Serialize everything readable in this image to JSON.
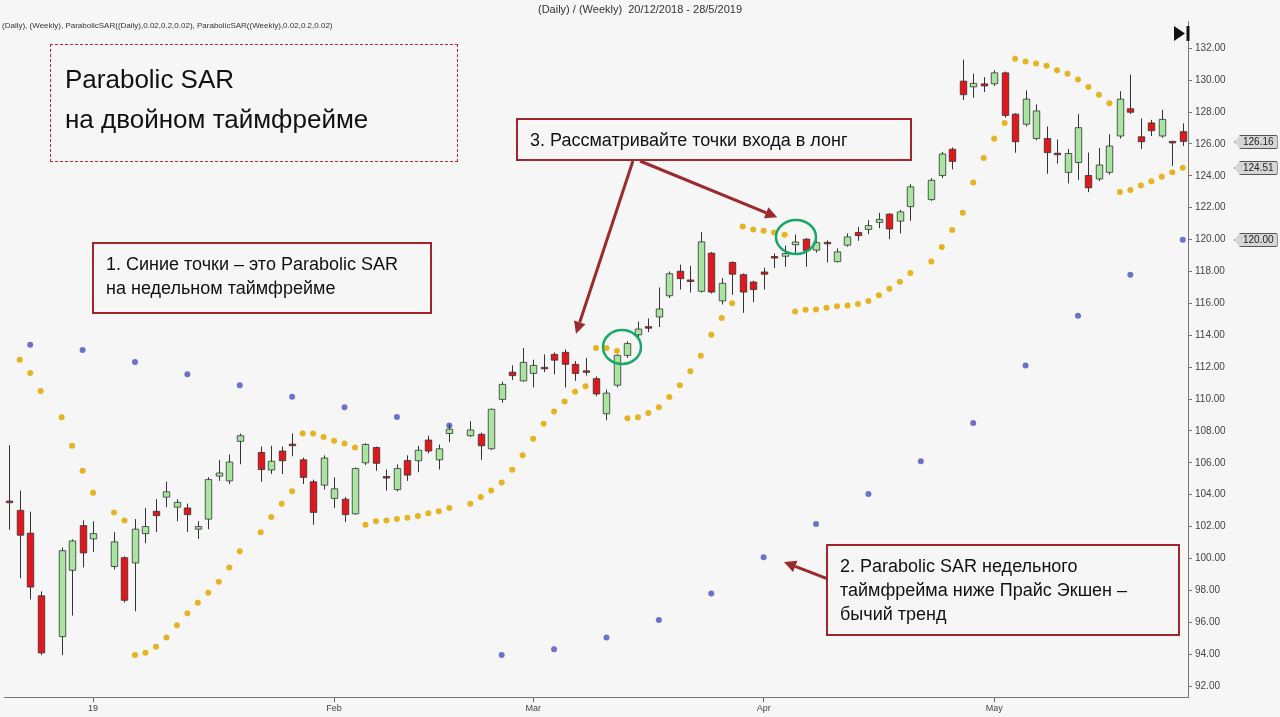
{
  "chart_data": {
    "type": "candlestick",
    "title": "(Daily) / (Weekly)  20/12/2018 - 28/5/2019",
    "subtitle": "(Daily), (Weekly), ParabolicSAR((Daily),0.02,0.2,0.02), ParabolicSAR((Weekly),0.02,0.2,0.02)",
    "categories": [
      null,
      null,
      null,
      null,
      null,
      null,
      null,
      null,
      "19",
      null,
      null,
      null,
      null,
      null,
      null,
      null,
      null,
      null,
      null,
      null,
      null,
      null,
      null,
      null,
      null,
      null,
      null,
      null,
      null,
      null,
      null,
      "Feb",
      null,
      null,
      null,
      null,
      null,
      null,
      null,
      null,
      null,
      null,
      null,
      null,
      null,
      null,
      null,
      null,
      null,
      null,
      "Mar",
      null,
      null,
      null,
      null,
      null,
      null,
      null,
      null,
      null,
      null,
      null,
      null,
      null,
      null,
      null,
      null,
      null,
      null,
      null,
      null,
      null,
      "Apr",
      null,
      null,
      null,
      null,
      null,
      null,
      null,
      null,
      null,
      null,
      null,
      null,
      null,
      null,
      null,
      null,
      null,
      null,
      null,
      null,
      null,
      "May",
      null,
      null,
      null,
      null,
      null,
      null,
      null,
      null,
      null,
      null,
      null,
      null,
      null,
      null,
      null,
      null,
      null,
      null
    ],
    "ohlc": [
      [
        103.6,
        107.1,
        101.8,
        103.5
      ],
      [
        103.02,
        104.26,
        98.76,
        101.46
      ],
      [
        101.59,
        102.94,
        97.44,
        98.21
      ],
      [
        97.66,
        97.94,
        93.94,
        94.08
      ],
      null,
      [
        95.1,
        100.69,
        93.94,
        100.49
      ],
      [
        99.26,
        101.2,
        96.42,
        101.1
      ],
      [
        102.06,
        102.39,
        99.44,
        100.35
      ],
      [
        101.23,
        102.34,
        100.41,
        101.56
      ],
      null,
      [
        99.5,
        101.65,
        99.31,
        101.04
      ],
      [
        100.05,
        100.14,
        97.24,
        97.38
      ],
      [
        99.72,
        102.47,
        96.69,
        101.84
      ],
      [
        101.56,
        103.17,
        100.96,
        102.0
      ],
      [
        102.96,
        103.72,
        101.65,
        102.69
      ],
      [
        103.85,
        104.81,
        103.22,
        104.18
      ],
      [
        103.22,
        103.72,
        102.34,
        103.52
      ],
      [
        103.17,
        103.44,
        101.65,
        102.75
      ],
      [
        101.84,
        102.34,
        101.23,
        102.0
      ],
      [
        102.47,
        105.1,
        101.84,
        104.95
      ],
      [
        105.17,
        106.19,
        104.87,
        105.36
      ],
      [
        104.87,
        106.52,
        104.67,
        106.05
      ],
      [
        107.35,
        107.84,
        105.91,
        107.7
      ],
      null,
      [
        106.65,
        107.02,
        104.81,
        105.58
      ],
      [
        105.55,
        107.07,
        105.3,
        106.1
      ],
      [
        106.74,
        107.02,
        105.3,
        106.13
      ],
      [
        107.17,
        107.84,
        106.41,
        107.15
      ],
      [
        106.19,
        106.33,
        104.67,
        105.09
      ],
      [
        104.81,
        104.95,
        102.12,
        102.89
      ],
      [
        104.6,
        106.47,
        104.32,
        106.3
      ],
      [
        103.77,
        105.09,
        103.17,
        104.37
      ],
      [
        103.72,
        103.85,
        102.28,
        102.75
      ],
      [
        102.8,
        105.7,
        102.75,
        105.64
      ],
      [
        106.0,
        107.23,
        105.86,
        107.15
      ],
      [
        106.96,
        107.02,
        105.5,
        105.97
      ],
      [
        105.14,
        105.58,
        104.26,
        105.12
      ],
      [
        104.32,
        105.91,
        104.21,
        105.64
      ],
      [
        106.14,
        106.47,
        104.87,
        105.23
      ],
      [
        106.13,
        107.07,
        105.41,
        106.79
      ],
      [
        107.43,
        107.7,
        106.6,
        106.74
      ],
      [
        106.19,
        107.15,
        105.58,
        106.88
      ],
      [
        107.84,
        108.39,
        107.29,
        108.11
      ],
      null,
      [
        107.7,
        108.61,
        107.62,
        108.06
      ],
      [
        107.79,
        107.9,
        106.19,
        107.07
      ],
      [
        106.88,
        109.4,
        106.8,
        109.36
      ],
      [
        109.98,
        111.09,
        109.77,
        110.92
      ],
      [
        111.69,
        112.11,
        111.2,
        111.47
      ],
      [
        111.14,
        113.2,
        111.09,
        112.3
      ],
      [
        111.61,
        112.47,
        110.73,
        112.11
      ],
      [
        111.99,
        112.8,
        111.69,
        111.97
      ],
      [
        112.8,
        112.93,
        111.55,
        112.44
      ],
      [
        112.93,
        113.12,
        110.73,
        112.18
      ],
      [
        112.18,
        112.38,
        111.14,
        111.61
      ],
      [
        111.77,
        112.58,
        111.47,
        111.73
      ],
      [
        111.28,
        111.42,
        110.18,
        110.32
      ],
      [
        109.08,
        110.59,
        108.67,
        110.37
      ],
      [
        110.87,
        112.8,
        110.73,
        112.74
      ],
      [
        112.74,
        113.62,
        112.58,
        113.48
      ],
      [
        114.03,
        114.85,
        113.76,
        114.39
      ],
      [
        114.54,
        115.05,
        114.2,
        114.52
      ],
      [
        115.15,
        117.0,
        114.52,
        115.65
      ],
      [
        116.48,
        118.0,
        116.34,
        117.86
      ],
      [
        118.02,
        118.43,
        116.87,
        117.55
      ],
      [
        117.47,
        118.35,
        116.68,
        117.45
      ],
      [
        116.76,
        120.47,
        116.68,
        119.86
      ],
      [
        119.15,
        119.23,
        116.62,
        116.71
      ],
      [
        116.16,
        117.59,
        115.93,
        117.26
      ],
      [
        118.57,
        118.63,
        116.54,
        117.83
      ],
      [
        117.8,
        117.88,
        115.41,
        116.71
      ],
      [
        117.34,
        117.42,
        116.07,
        116.87
      ],
      [
        117.97,
        118.24,
        116.87,
        117.83
      ],
      [
        118.94,
        119.13,
        118.22,
        118.92
      ],
      [
        118.96,
        119.62,
        118.3,
        119.13
      ],
      [
        119.68,
        120.32,
        119.13,
        119.85
      ],
      [
        120.03,
        120.09,
        118.3,
        119.32
      ],
      [
        119.34,
        119.95,
        119.18,
        119.81
      ],
      [
        119.83,
        119.95,
        118.57,
        119.81
      ],
      [
        118.62,
        119.45,
        118.57,
        119.23
      ],
      [
        119.65,
        120.39,
        119.56,
        120.17
      ],
      [
        120.45,
        120.8,
        119.92,
        120.25
      ],
      [
        120.64,
        121.22,
        120.34,
        120.88
      ],
      [
        121.08,
        121.68,
        120.72,
        121.27
      ],
      [
        121.6,
        121.66,
        120.03,
        120.67
      ],
      [
        121.16,
        121.87,
        120.39,
        121.74
      ],
      [
        122.07,
        123.48,
        121.18,
        123.31
      ],
      null,
      [
        122.51,
        123.86,
        122.43,
        123.72
      ],
      [
        124.02,
        125.5,
        123.86,
        125.37
      ],
      [
        125.67,
        125.78,
        124.41,
        124.91
      ],
      [
        129.94,
        131.29,
        128.75,
        129.09
      ],
      [
        129.58,
        130.41,
        128.89,
        129.8
      ],
      [
        129.77,
        130.19,
        129.25,
        129.64
      ],
      [
        129.77,
        130.62,
        129.64,
        130.46
      ],
      [
        130.46,
        130.54,
        127.65,
        127.79
      ],
      [
        127.87,
        127.92,
        125.45,
        126.14
      ],
      [
        127.24,
        129.36,
        127.1,
        128.81
      ],
      [
        126.34,
        128.48,
        126.23,
        128.07
      ],
      [
        126.34,
        127.1,
        124.13,
        125.46
      ],
      [
        125.42,
        126.28,
        124.76,
        125.4
      ],
      [
        124.22,
        125.68,
        123.53,
        125.4
      ],
      [
        124.84,
        127.87,
        123.75,
        127.02
      ],
      [
        124.02,
        125.46,
        122.98,
        123.25
      ],
      [
        123.81,
        125.74,
        123.67,
        124.68
      ],
      [
        124.22,
        126.61,
        124.08,
        125.87
      ],
      [
        126.5,
        129.31,
        126.34,
        128.81
      ],
      [
        128.21,
        130.35,
        127.87,
        127.99
      ],
      [
        126.45,
        127.6,
        125.68,
        126.14
      ],
      [
        127.32,
        127.51,
        126.5,
        126.83
      ],
      [
        126.5,
        128.14,
        126.39,
        127.54
      ],
      [
        126.16,
        126.2,
        124.62,
        126.14
      ],
      [
        126.77,
        127.29,
        125.87,
        126.16
      ]
    ],
    "colors": [
      "#e3161b",
      "#e3161b",
      "#e3161b",
      "#e3161b",
      null,
      "#a8e6a0",
      "#a8e6a0",
      "#e3161b",
      "#a8e6a0",
      null,
      "#a8e6a0",
      "#e3161b",
      "#a8e6a0",
      "#a8e6a0",
      "#e3161b",
      "#a8e6a0",
      "#a8e6a0",
      "#e3161b",
      "#a8e6a0",
      "#a8e6a0",
      "#a8e6a0",
      "#a8e6a0",
      "#a8e6a0",
      null,
      "#e3161b",
      "#a8e6a0",
      "#e3161b",
      "#e3161b",
      "#e3161b",
      "#e3161b",
      "#a8e6a0",
      "#a8e6a0",
      "#e3161b",
      "#a8e6a0",
      "#a8e6a0",
      "#e3161b",
      "#e3161b",
      "#a8e6a0",
      "#e3161b",
      "#a8e6a0",
      "#e3161b",
      "#a8e6a0",
      "#a8e6a0",
      null,
      "#a8e6a0",
      "#e3161b",
      "#a8e6a0",
      "#a8e6a0",
      "#e3161b",
      "#a8e6a0",
      "#a8e6a0",
      "#e3161b",
      "#e3161b",
      "#e3161b",
      "#e3161b",
      "#e3161b",
      "#e3161b",
      "#a8e6a0",
      "#a8e6a0",
      "#a8e6a0",
      "#a8e6a0",
      "#e3161b",
      "#a8e6a0",
      "#a8e6a0",
      "#e3161b",
      "#e3161b",
      "#a8e6a0",
      "#e3161b",
      "#a8e6a0",
      "#e3161b",
      "#e3161b",
      "#e3161b",
      "#e3161b",
      "#e3161b",
      "#a8e6a0",
      "#a8e6a0",
      "#e3161b",
      "#a8e6a0",
      "#e3161b",
      "#a8e6a0",
      "#a8e6a0",
      "#e3161b",
      "#a8e6a0",
      "#a8e6a0",
      "#e3161b",
      "#a8e6a0",
      "#a8e6a0",
      null,
      "#a8e6a0",
      "#a8e6a0",
      "#e3161b",
      "#e3161b",
      "#a8e6a0",
      "#e3161b",
      "#a8e6a0",
      "#e3161b",
      "#e3161b",
      "#a8e6a0",
      "#a8e6a0",
      "#e3161b",
      "#e3161b",
      "#a8e6a0",
      "#a8e6a0",
      "#e3161b",
      "#a8e6a0",
      "#a8e6a0",
      "#a8e6a0",
      "#e3161b",
      "#e3161b",
      "#e3161b",
      "#a8e6a0",
      "#e3161b",
      "#e3161b"
    ],
    "series": [
      {
        "type": "scatter",
        "color": "#e6b422",
        "values": [
          null,
          112.47,
          111.64,
          110.51,
          null,
          108.86,
          107.07,
          105.5,
          104.13,
          null,
          102.89,
          102.39,
          93.95,
          94.09,
          94.47,
          95.05,
          95.82,
          96.56,
          97.22,
          97.85,
          98.54,
          99.44,
          100.46,
          null,
          101.65,
          102.61,
          103.44,
          104.21,
          107.84,
          107.84,
          107.62,
          107.38,
          107.21,
          106.96,
          102.12,
          102.34,
          102.39,
          102.47,
          102.56,
          102.67,
          102.83,
          102.97,
          103.16,
          null,
          103.44,
          103.85,
          104.26,
          104.76,
          105.56,
          106.47,
          107.51,
          108.45,
          109.22,
          109.85,
          110.46,
          110.81,
          113.21,
          113.21,
          113.01,
          108.8,
          108.86,
          109.13,
          109.49,
          110.13,
          110.87,
          111.75,
          112.71,
          114.03,
          115.08,
          116.01,
          120.83,
          120.64,
          120.56,
          120.45,
          120.31,
          115.49,
          115.6,
          115.62,
          115.73,
          115.82,
          115.87,
          115.96,
          116.15,
          116.51,
          116.92,
          117.36,
          117.91,
          null,
          118.63,
          119.54,
          120.61,
          121.68,
          123.58,
          125.12,
          126.33,
          127.32,
          131.34,
          131.18,
          131.04,
          130.9,
          130.63,
          130.41,
          130.05,
          129.58,
          129.09,
          128.56,
          122.98,
          123.11,
          123.39,
          123.66,
          123.94,
          124.22,
          124.51
        ]
      },
      {
        "type": "scatter",
        "color": "#6b72c9",
        "values": [
          null,
          null,
          113.4,
          null,
          null,
          null,
          null,
          113.07,
          null,
          null,
          null,
          null,
          112.33,
          null,
          null,
          null,
          null,
          111.56,
          null,
          null,
          null,
          null,
          110.87,
          null,
          null,
          null,
          null,
          110.15,
          null,
          null,
          null,
          null,
          109.49,
          null,
          null,
          null,
          null,
          108.88,
          null,
          null,
          null,
          null,
          108.34,
          null,
          null,
          null,
          null,
          93.95,
          null,
          null,
          null,
          null,
          94.31,
          null,
          null,
          null,
          null,
          95.05,
          null,
          null,
          null,
          null,
          96.14,
          null,
          null,
          null,
          null,
          97.8,
          null,
          null,
          null,
          null,
          100.08,
          null,
          null,
          null,
          null,
          102.17,
          null,
          null,
          null,
          null,
          104.05,
          null,
          null,
          null,
          null,
          106.1,
          null,
          null,
          null,
          null,
          108.5,
          null,
          null,
          null,
          null,
          112.11,
          null,
          null,
          null,
          null,
          115.22,
          null,
          null,
          null,
          null,
          117.8,
          null,
          null,
          null,
          null,
          120.0
        ]
      }
    ],
    "marker": "circle",
    "ylim": [
      91.3,
      133.7
    ],
    "yticks": [
      {
        "value": 92,
        "label": "92.00"
      },
      {
        "value": 94,
        "label": "94.00"
      },
      {
        "value": 96,
        "label": "96.00"
      },
      {
        "value": 98,
        "label": "98.00"
      },
      {
        "value": 100,
        "label": "100.00"
      },
      {
        "value": 102,
        "label": "102.00"
      },
      {
        "value": 104,
        "label": "104.00"
      },
      {
        "value": 106,
        "label": "106.00"
      },
      {
        "value": 108,
        "label": "108.00"
      },
      {
        "value": 110,
        "label": "110.00"
      },
      {
        "value": 112,
        "label": "112.00"
      },
      {
        "value": 114,
        "label": "114.00"
      },
      {
        "value": 116,
        "label": "116.00"
      },
      {
        "value": 118,
        "label": "118.00"
      },
      {
        "value": 120,
        "label": "120.00"
      },
      {
        "value": 122,
        "label": "122.00"
      },
      {
        "value": 124,
        "label": "124.00"
      },
      {
        "value": 126,
        "label": "126.00"
      },
      {
        "value": 128,
        "label": "128.00"
      },
      {
        "value": 130,
        "label": "130.00"
      },
      {
        "value": 132,
        "label": "132.00"
      }
    ],
    "annotations": [
      "Parabolic SAR\nна двойном таймфрейме",
      "1. Синие точки – это Parabolic SAR на недельном таймфрейме",
      "2. Parabolic SAR недельного таймфрейма ниже Прайс Экшен – бычий тренд",
      "3. Рассматривайте точки входа в лонг",
      "126.16",
      "124.51",
      "120.00"
    ]
  }
}
